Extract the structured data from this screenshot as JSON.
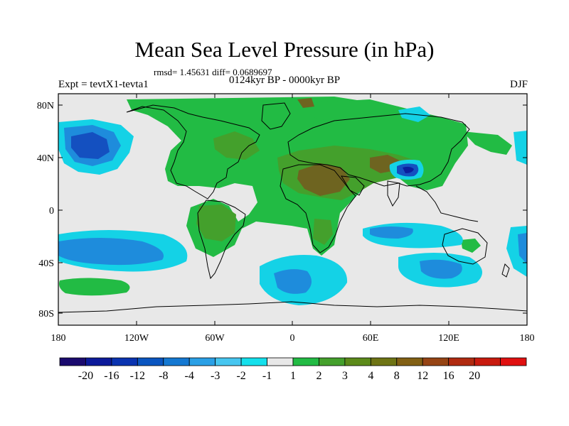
{
  "title": "Mean Sea Level Pressure (in hPa)",
  "stats": "rmsd= 1.45631 diff= 0.0689697",
  "experiment": "Expt = tevtX1-tevta1",
  "period": "0124kyr BP - 0000kyr BP",
  "season": "DJF",
  "lat_labels": [
    "80N",
    "40N",
    "0",
    "40S",
    "80S"
  ],
  "lon_labels": [
    "180",
    "120W",
    "60W",
    "0",
    "60E",
    "120E",
    "180"
  ],
  "colorbar": {
    "colors": [
      "#1a0a6e",
      "#0c1a9a",
      "#0a33b0",
      "#0a55c0",
      "#1478d2",
      "#2aa0e6",
      "#46c6f0",
      "#14e0ec",
      "#e8e8e8",
      "#22bb44",
      "#44a02c",
      "#5c8a1a",
      "#6e7414",
      "#826014",
      "#964414",
      "#b02a10",
      "#c81a0e",
      "#e01010"
    ],
    "labels": [
      "-20",
      "-16",
      "-12",
      "-8",
      "-4",
      "-3",
      "-2",
      "-1",
      "1",
      "2",
      "3",
      "4",
      "8",
      "12",
      "16",
      "20"
    ]
  },
  "colors": {
    "background": "#e8e8e8",
    "positive_light": "#22bb44",
    "positive_mid": "#44a02c",
    "positive_strong": "#6e6420",
    "negative_light": "#14d2e6",
    "negative_mid": "#1e8cdc",
    "negative_strong": "#1450c0",
    "negative_core": "#0a1e9e"
  }
}
